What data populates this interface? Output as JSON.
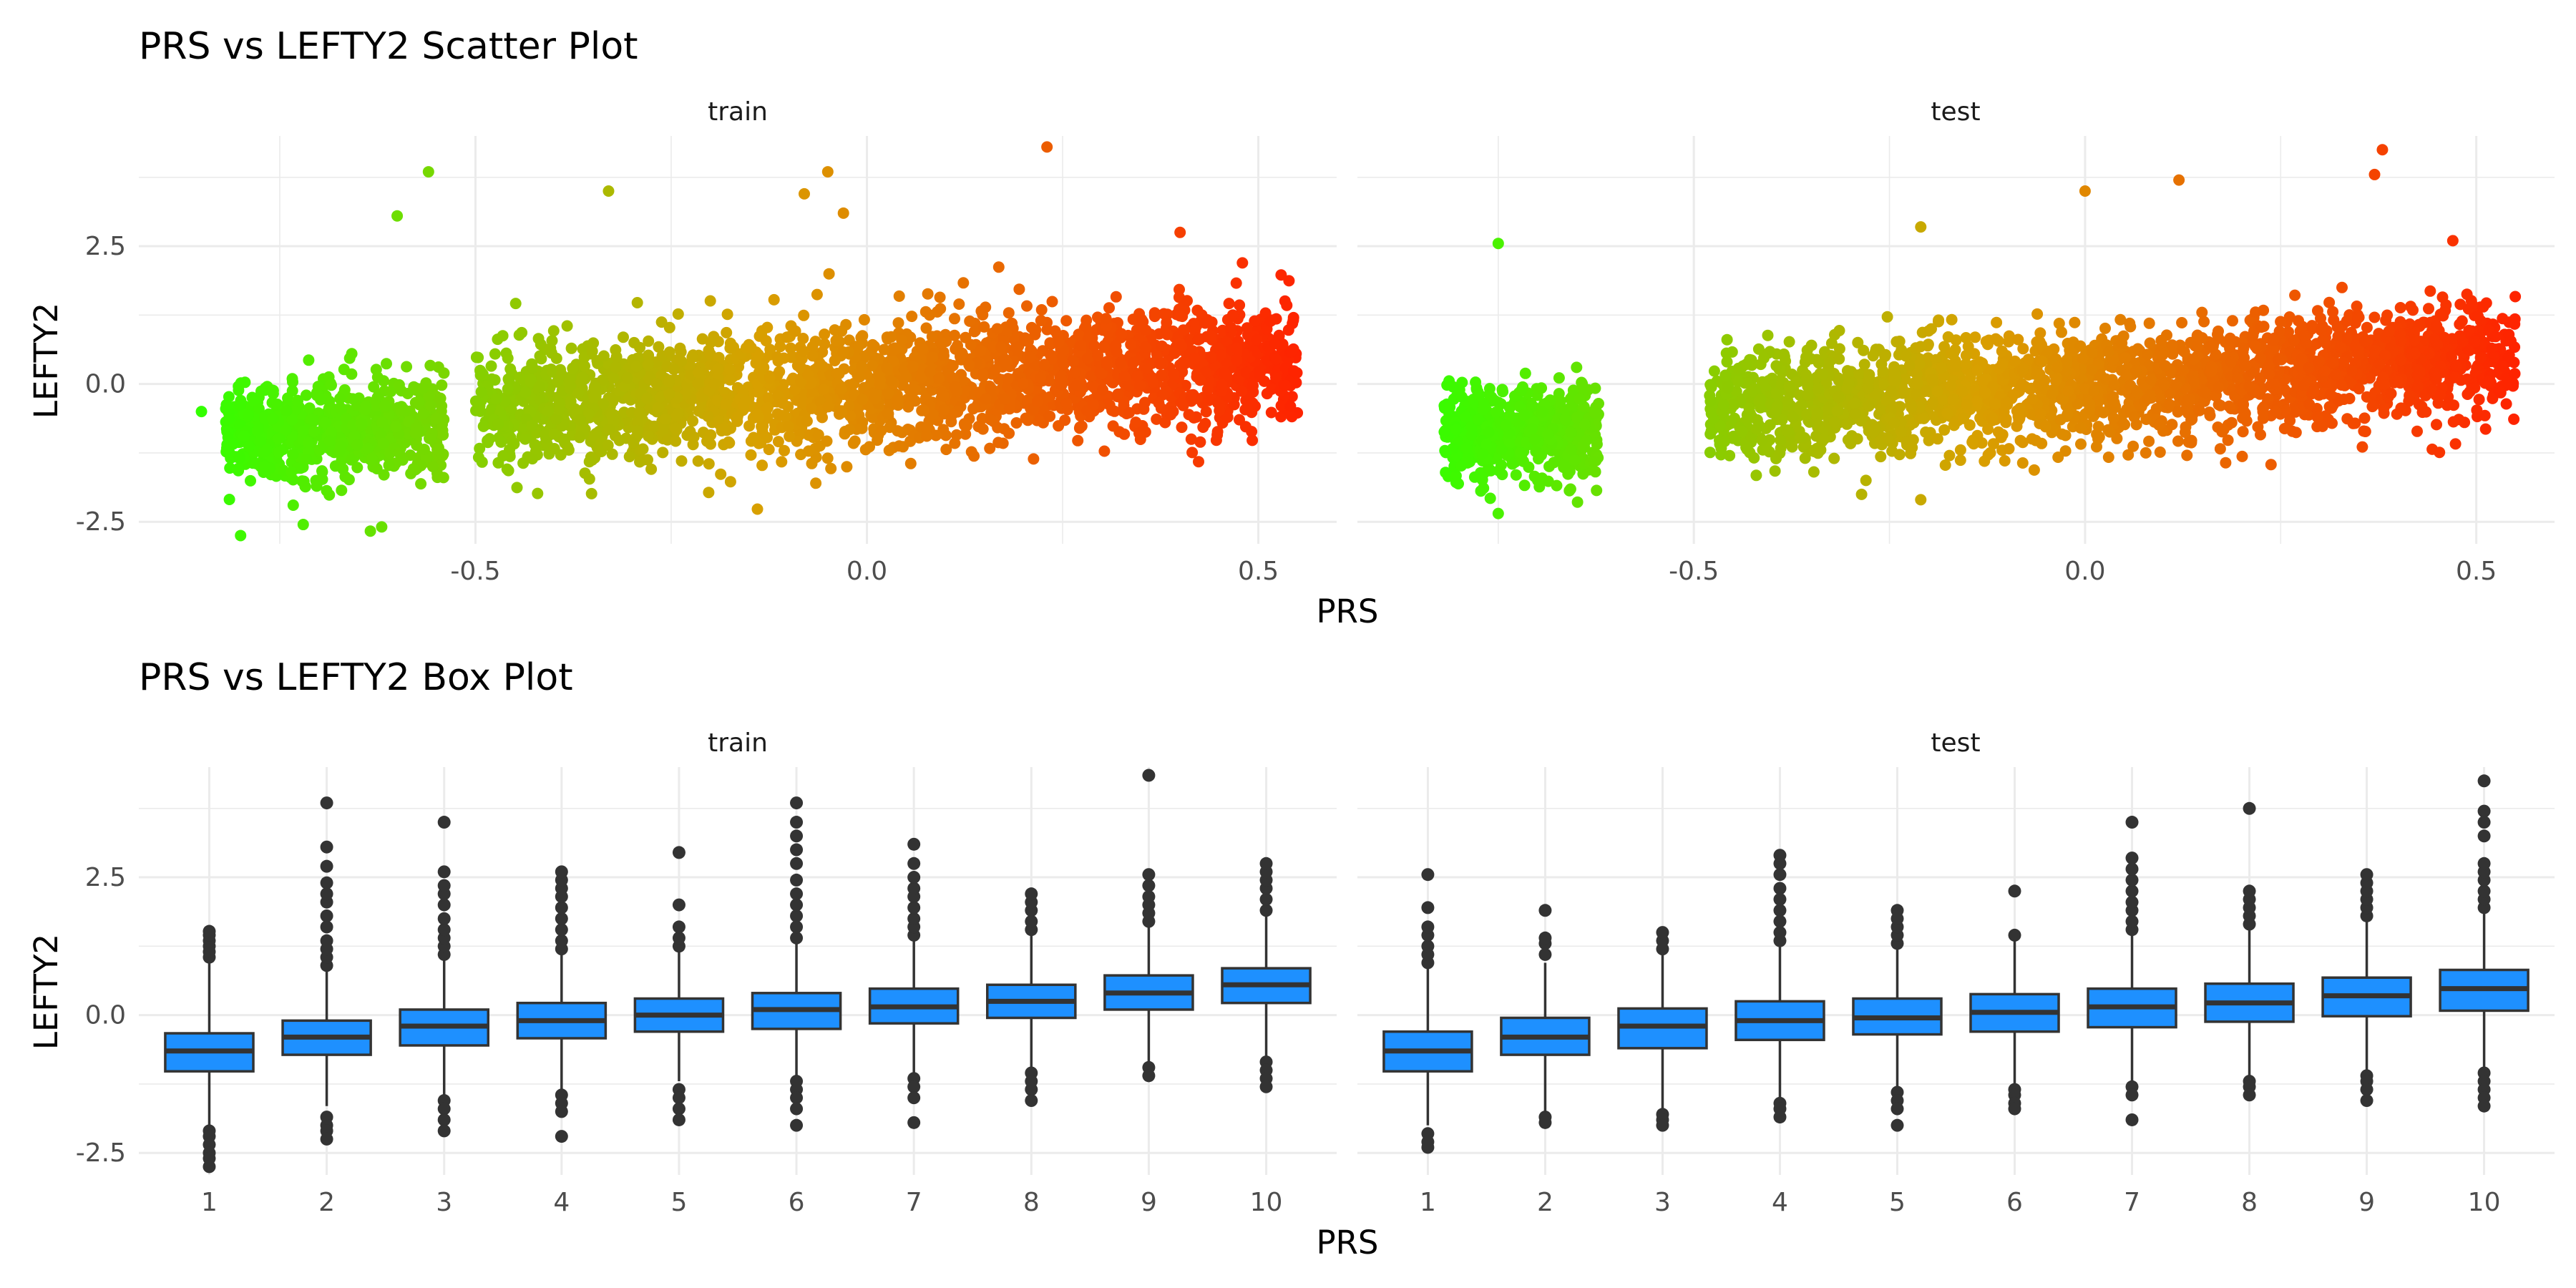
{
  "chart_data": [
    {
      "type": "scatter",
      "title": "PRS vs LEFTY2 Scatter Plot",
      "xlabel": "PRS",
      "ylabel": "LEFTY2",
      "xlim": [
        -0.93,
        0.6
      ],
      "ylim": [
        -2.9,
        4.5
      ],
      "x_ticks": [
        "-0.5",
        "0.0",
        "0.5"
      ],
      "y_ticks": [
        "-2.5",
        "0.0",
        "2.5"
      ],
      "grid": true,
      "colors": {
        "low": "#33ff00",
        "mid": "#d8a000",
        "high": "#ff2000"
      },
      "color_scale": "PRS (green to red)",
      "facets": [
        {
          "name": "train",
          "clusters": [
            {
              "x_range": [
                -0.82,
                -0.54
              ],
              "y_center": -0.8,
              "y_sd": 0.45,
              "n": 700
            },
            {
              "x_range": [
                -0.5,
                0.55
              ],
              "y_center": 0.0,
              "y_sd": 0.55,
              "n": 2400
            }
          ],
          "outliers": [
            [
              0.23,
              4.3
            ],
            [
              -0.56,
              3.85
            ],
            [
              -0.05,
              3.85
            ],
            [
              -0.33,
              3.5
            ],
            [
              -0.6,
              3.05
            ],
            [
              -0.08,
              3.45
            ],
            [
              -0.03,
              3.1
            ],
            [
              0.4,
              2.75
            ],
            [
              -0.8,
              -2.75
            ],
            [
              -0.72,
              -2.55
            ],
            [
              -0.85,
              -0.5
            ]
          ]
        },
        {
          "name": "test",
          "clusters": [
            {
              "x_range": [
                -0.82,
                -0.62
              ],
              "y_center": -0.9,
              "y_sd": 0.42,
              "n": 550
            },
            {
              "x_range": [
                -0.48,
                0.55
              ],
              "y_center": 0.0,
              "y_sd": 0.5,
              "n": 2300
            }
          ],
          "outliers": [
            [
              0.38,
              4.25
            ],
            [
              0.37,
              3.8
            ],
            [
              0.12,
              3.7
            ],
            [
              0.0,
              3.5
            ],
            [
              0.47,
              2.6
            ],
            [
              -0.75,
              2.55
            ],
            [
              -0.21,
              2.85
            ],
            [
              -0.21,
              -2.1
            ],
            [
              -0.75,
              -2.35
            ]
          ]
        }
      ]
    },
    {
      "type": "box",
      "title": "PRS vs LEFTY2 Box Plot",
      "xlabel": "PRS",
      "ylabel": "LEFTY2",
      "categories": [
        "1",
        "2",
        "3",
        "4",
        "5",
        "6",
        "7",
        "8",
        "9",
        "10"
      ],
      "ylim": [
        -2.9,
        4.5
      ],
      "y_ticks": [
        "-2.5",
        "0.0",
        "2.5"
      ],
      "box_color": "#1e90ff",
      "facets": [
        {
          "name": "train",
          "boxes": [
            {
              "q1": -1.02,
              "median": -0.65,
              "q3": -0.33,
              "lower": -2.0,
              "upper": 1.0,
              "outliers": [
                -2.1,
                -2.2,
                -2.35,
                -2.5,
                -2.6,
                -2.75,
                1.05,
                1.15,
                1.25,
                1.35,
                1.45,
                1.52
              ]
            },
            {
              "q1": -0.72,
              "median": -0.4,
              "q3": -0.1,
              "lower": -1.65,
              "upper": 0.85,
              "outliers": [
                -1.85,
                -2.0,
                -2.1,
                -2.25,
                0.9,
                1.05,
                1.2,
                1.35,
                1.6,
                1.8,
                2.05,
                2.2,
                2.4,
                2.7,
                3.05,
                3.85
              ]
            },
            {
              "q1": -0.55,
              "median": -0.2,
              "q3": 0.1,
              "lower": -1.45,
              "upper": 1.05,
              "outliers": [
                -1.55,
                -1.7,
                -1.9,
                -2.1,
                1.1,
                1.25,
                1.4,
                1.55,
                1.75,
                2.0,
                2.2,
                2.35,
                2.6,
                3.5
              ]
            },
            {
              "q1": -0.42,
              "median": -0.1,
              "q3": 0.22,
              "lower": -1.35,
              "upper": 1.15,
              "outliers": [
                -1.45,
                -1.6,
                -1.75,
                -2.2,
                1.2,
                1.35,
                1.55,
                1.75,
                1.95,
                2.15,
                2.3,
                2.45,
                2.6
              ]
            },
            {
              "q1": -0.3,
              "median": 0.0,
              "q3": 0.3,
              "lower": -1.2,
              "upper": 1.2,
              "outliers": [
                -1.35,
                -1.5,
                -1.7,
                -1.9,
                1.25,
                1.4,
                1.6,
                2.0,
                2.95
              ]
            },
            {
              "q1": -0.25,
              "median": 0.1,
              "q3": 0.4,
              "lower": -1.1,
              "upper": 1.3,
              "outliers": [
                -1.2,
                -1.35,
                -1.5,
                -1.7,
                -2.0,
                1.4,
                1.6,
                1.8,
                2.0,
                2.2,
                2.45,
                2.75,
                3.0,
                3.25,
                3.5,
                3.85
              ]
            },
            {
              "q1": -0.15,
              "median": 0.15,
              "q3": 0.48,
              "lower": -1.05,
              "upper": 1.35,
              "outliers": [
                -1.15,
                -1.3,
                -1.5,
                -1.95,
                1.45,
                1.6,
                1.75,
                1.95,
                2.15,
                2.3,
                2.5,
                2.75,
                3.1
              ]
            },
            {
              "q1": -0.05,
              "median": 0.25,
              "q3": 0.55,
              "lower": -0.95,
              "upper": 1.45,
              "outliers": [
                -1.05,
                -1.2,
                -1.35,
                -1.55,
                1.55,
                1.7,
                1.9,
                2.05,
                2.2
              ]
            },
            {
              "q1": 0.1,
              "median": 0.4,
              "q3": 0.72,
              "lower": -0.85,
              "upper": 1.6,
              "outliers": [
                -0.95,
                -1.1,
                1.7,
                1.85,
                2.0,
                2.15,
                2.35,
                2.55,
                4.35
              ]
            },
            {
              "q1": 0.22,
              "median": 0.55,
              "q3": 0.85,
              "lower": -0.75,
              "upper": 1.8,
              "outliers": [
                -0.85,
                -1.0,
                -1.15,
                -1.3,
                1.9,
                2.1,
                2.3,
                2.45,
                2.6,
                2.75
              ]
            }
          ]
        },
        {
          "name": "test",
          "boxes": [
            {
              "q1": -1.02,
              "median": -0.65,
              "q3": -0.3,
              "lower": -2.0,
              "upper": 0.85,
              "outliers": [
                -2.15,
                -2.3,
                -2.4,
                0.95,
                1.1,
                1.25,
                1.45,
                1.6,
                1.95,
                2.55
              ]
            },
            {
              "q1": -0.72,
              "median": -0.4,
              "q3": -0.05,
              "lower": -1.75,
              "upper": 0.95,
              "outliers": [
                -1.85,
                -1.95,
                1.1,
                1.3,
                1.4,
                1.9
              ]
            },
            {
              "q1": -0.6,
              "median": -0.2,
              "q3": 0.12,
              "lower": -1.7,
              "upper": 1.1,
              "outliers": [
                -1.8,
                -1.9,
                -2.0,
                1.2,
                1.35,
                1.5
              ]
            },
            {
              "q1": -0.45,
              "median": -0.1,
              "q3": 0.25,
              "lower": -1.5,
              "upper": 1.25,
              "outliers": [
                -1.6,
                -1.7,
                -1.85,
                1.35,
                1.5,
                1.7,
                1.9,
                2.1,
                2.3,
                2.55,
                2.75,
                2.9
              ]
            },
            {
              "q1": -0.35,
              "median": -0.05,
              "q3": 0.3,
              "lower": -1.3,
              "upper": 1.2,
              "outliers": [
                -1.4,
                -1.55,
                -1.7,
                -2.0,
                1.3,
                1.45,
                1.6,
                1.75,
                1.9
              ]
            },
            {
              "q1": -0.3,
              "median": 0.05,
              "q3": 0.38,
              "lower": -1.25,
              "upper": 1.35,
              "outliers": [
                -1.35,
                -1.45,
                -1.6,
                -1.7,
                1.45,
                2.25
              ]
            },
            {
              "q1": -0.22,
              "median": 0.15,
              "q3": 0.48,
              "lower": -1.2,
              "upper": 1.45,
              "outliers": [
                -1.3,
                -1.45,
                -1.9,
                1.55,
                1.7,
                1.9,
                2.05,
                2.25,
                2.45,
                2.65,
                2.85,
                3.5
              ]
            },
            {
              "q1": -0.12,
              "median": 0.22,
              "q3": 0.57,
              "lower": -1.1,
              "upper": 1.55,
              "outliers": [
                -1.2,
                -1.3,
                -1.45,
                1.65,
                1.8,
                1.95,
                2.1,
                2.25,
                3.75
              ]
            },
            {
              "q1": -0.02,
              "median": 0.35,
              "q3": 0.68,
              "lower": -1.0,
              "upper": 1.7,
              "outliers": [
                -1.1,
                -1.2,
                -1.35,
                -1.55,
                1.8,
                1.95,
                2.1,
                2.25,
                2.4,
                2.55
              ]
            },
            {
              "q1": 0.08,
              "median": 0.48,
              "q3": 0.82,
              "lower": -0.95,
              "upper": 1.85,
              "outliers": [
                -1.05,
                -1.2,
                -1.35,
                -1.5,
                -1.65,
                1.95,
                2.1,
                2.25,
                2.45,
                2.6,
                2.75,
                3.25,
                3.5,
                3.7,
                4.25
              ]
            }
          ]
        }
      ]
    }
  ]
}
